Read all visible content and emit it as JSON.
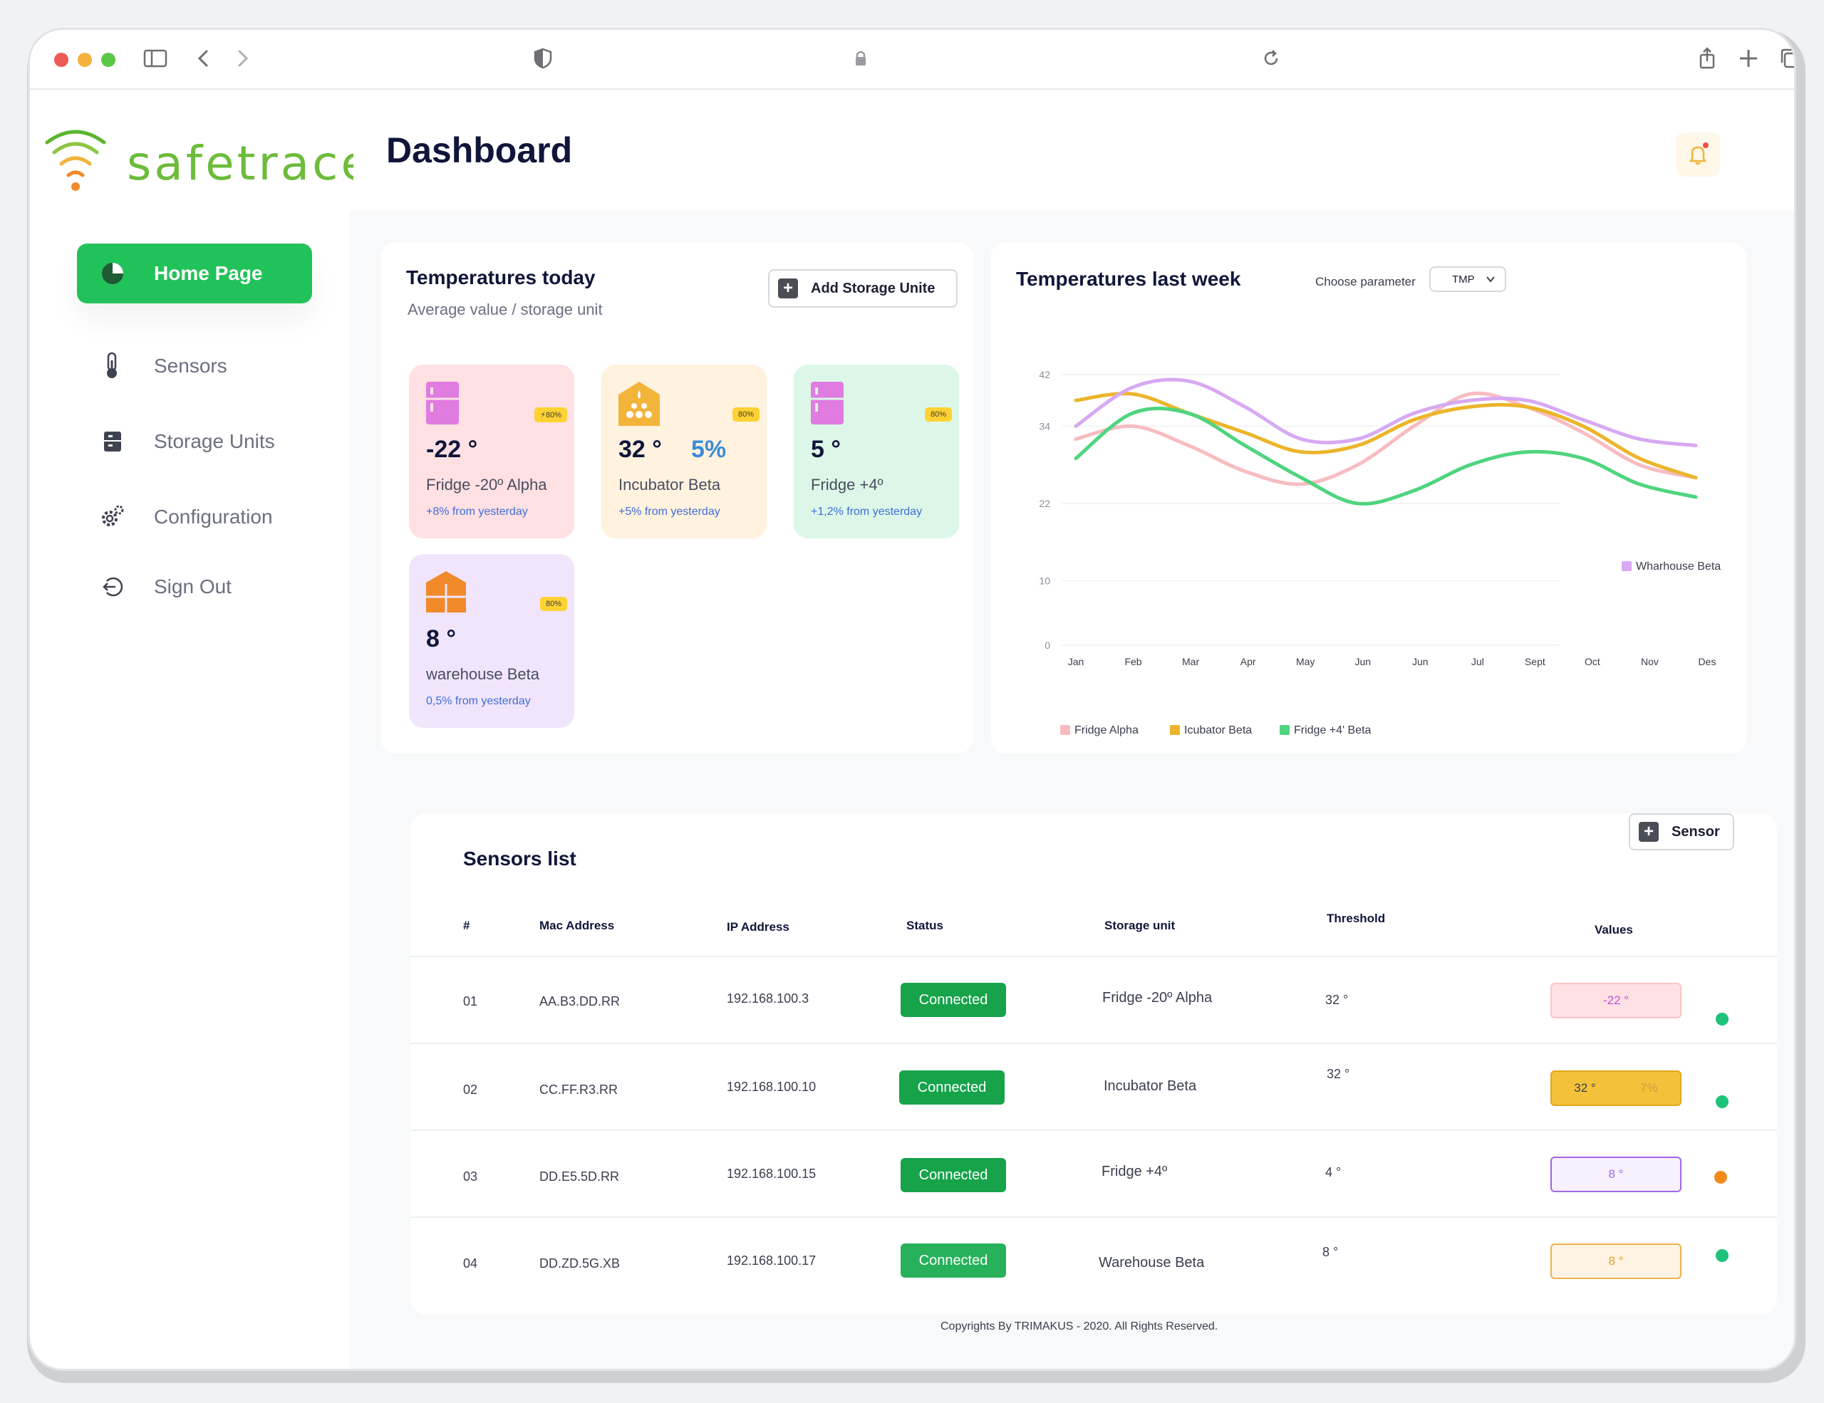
{
  "brand": {
    "name": "safetrace"
  },
  "header": {
    "title": "Dashboard"
  },
  "sidebar": {
    "items": [
      {
        "label": "Home Page",
        "icon": "pie-chart-icon",
        "active": true
      },
      {
        "label": "Sensors",
        "icon": "thermometer-icon"
      },
      {
        "label": "Storage Units",
        "icon": "cabinet-icon"
      },
      {
        "label": "Configuration",
        "icon": "gear-icon"
      },
      {
        "label": "Sign Out",
        "icon": "sign-out-icon"
      }
    ]
  },
  "today": {
    "title": "Temperatures today",
    "subtitle": "Average value / storage unit",
    "add_label": "Add Storage Unite",
    "tiles": [
      {
        "temp": "-22 °",
        "pct": "",
        "name": "Fridge -20º Alpha",
        "change": "+8% from yesterday",
        "badge": "⚡80%",
        "bg": "#ffe0e3"
      },
      {
        "temp": "32 °",
        "pct": "5%",
        "name": "Incubator Beta",
        "change": "+5% from yesterday",
        "badge": "80%",
        "bg": "#fff2df"
      },
      {
        "temp": "5 °",
        "pct": "",
        "name": "Fridge +4º",
        "change": "+1,2% from yesterday",
        "badge": "80%",
        "bg": "#dcf7e8"
      },
      {
        "temp": "8 °",
        "pct": "",
        "name": "warehouse Beta",
        "change": "0,5% from yesterday",
        "badge": "80%",
        "bg": "#f1e5fc"
      }
    ]
  },
  "week": {
    "title": "Temperatures last week",
    "param_label": "Choose parameter",
    "param_value": "TMP"
  },
  "chart_data": {
    "type": "line",
    "title": "Temperatures last week",
    "categories": [
      "Jan",
      "Feb",
      "Mar",
      "Apr",
      "May",
      "Jun",
      "Jun",
      "Jul",
      "Sept",
      "Oct",
      "Nov",
      "Des"
    ],
    "yticks": [
      0,
      10,
      22,
      34,
      42
    ],
    "ylim": [
      0,
      42
    ],
    "series": [
      {
        "name": "Fridge Alpha",
        "color": "#f7bcc0",
        "values": [
          32,
          34,
          31,
          27,
          25,
          28,
          34,
          39,
          37,
          33,
          28,
          26
        ]
      },
      {
        "name": "Icubator Beta",
        "color": "#ebb52b",
        "values": [
          38,
          39,
          36,
          33,
          30,
          31,
          35,
          37,
          37,
          34,
          29,
          26
        ]
      },
      {
        "name": "Fridge +4' Beta",
        "color": "#4fd47f",
        "values": [
          29,
          36,
          36,
          31,
          26,
          22,
          24,
          28,
          30,
          29,
          25,
          23
        ]
      },
      {
        "name": "Wharhouse Beta",
        "color": "#d7a9f2",
        "values": [
          34,
          40,
          41,
          37,
          32,
          32,
          36,
          38,
          38,
          35,
          32,
          31
        ]
      }
    ],
    "grid": true,
    "legend": "bottom"
  },
  "sensors": {
    "title": "Sensors list",
    "add_label": "Sensor",
    "columns": [
      "#",
      "Mac Address",
      "IP Address",
      "Status",
      "Storage unit",
      "Threshold",
      "Values"
    ],
    "rows": [
      {
        "num": "01",
        "mac": "AA.B3.DD.RR",
        "ip": "192.168.100.3",
        "status": "Connected",
        "unit": "Fridge -20º Alpha",
        "threshold": "32 °",
        "value": "-22 °",
        "value2": "",
        "dot": "#1ec279"
      },
      {
        "num": "02",
        "mac": "CC.FF.R3.RR",
        "ip": "192.168.100.10",
        "status": "Connected",
        "unit": "Incubator Beta",
        "threshold": "32 °",
        "value": "32 °",
        "value2": "7%",
        "dot": "#1ec279"
      },
      {
        "num": "03",
        "mac": "DD.E5.5D.RR",
        "ip": "192.168.100.15",
        "status": "Connected",
        "unit": "Fridge +4º",
        "threshold": "4 °",
        "value": "8 °",
        "value2": "",
        "dot": "#f18a1b"
      },
      {
        "num": "04",
        "mac": "DD.ZD.5G.XB",
        "ip": "192.168.100.17",
        "status": "Connected",
        "unit": "Warehouse Beta",
        "threshold": "8 °",
        "value": "8 °",
        "value2": "",
        "dot": "#1ec279"
      }
    ]
  },
  "footer": {
    "text": "Copyrights By TRIMAKUS - 2020. All Rights Reserved."
  }
}
